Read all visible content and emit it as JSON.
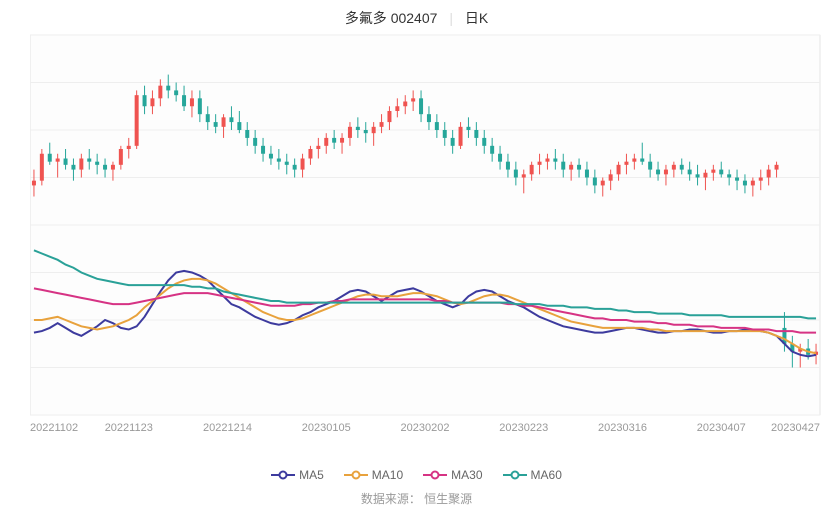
{
  "title": {
    "stock_name": "多氟多",
    "stock_code": "002407",
    "chart_type": "日K",
    "fontsize": 14,
    "color": "#333333",
    "sep_color": "#dddddd"
  },
  "chart": {
    "type": "candlestick_with_ma",
    "background_color": "#ffffff",
    "area_bg": "#fdfdfd",
    "grid_color": "#eeeeee",
    "border_color": "#cccccc",
    "ylim": [
      18,
      42
    ],
    "ytick_step": 3,
    "yticks": [
      18,
      21,
      24,
      27,
      30,
      33,
      36,
      39,
      42
    ],
    "ylabel_color": "#999999",
    "ylabel_fontsize": 11,
    "xticks": [
      "20221102",
      "20221123",
      "20221214",
      "20230105",
      "20230202",
      "20230223",
      "20230316",
      "20230407",
      "20230427"
    ],
    "xlabel_color": "#999999",
    "xlabel_fontsize": 11,
    "candle_up_color": "#ef5350",
    "candle_dn_color": "#26a69a",
    "candle_width": 4,
    "wick_width": 1,
    "candles": [
      {
        "o": 32.5,
        "h": 33.5,
        "l": 31.8,
        "c": 32.8
      },
      {
        "o": 32.8,
        "h": 34.8,
        "l": 32.5,
        "c": 34.5
      },
      {
        "o": 34.5,
        "h": 35.2,
        "l": 33.8,
        "c": 34.0
      },
      {
        "o": 34.0,
        "h": 34.5,
        "l": 33.0,
        "c": 34.2
      },
      {
        "o": 34.2,
        "h": 34.8,
        "l": 33.5,
        "c": 33.8
      },
      {
        "o": 33.8,
        "h": 34.2,
        "l": 32.8,
        "c": 33.5
      },
      {
        "o": 33.5,
        "h": 34.5,
        "l": 33.0,
        "c": 34.2
      },
      {
        "o": 34.2,
        "h": 34.8,
        "l": 33.5,
        "c": 34.0
      },
      {
        "o": 34.0,
        "h": 34.5,
        "l": 33.2,
        "c": 33.8
      },
      {
        "o": 33.8,
        "h": 34.2,
        "l": 33.0,
        "c": 33.5
      },
      {
        "o": 33.5,
        "h": 34.0,
        "l": 32.8,
        "c": 33.8
      },
      {
        "o": 33.8,
        "h": 35.0,
        "l": 33.5,
        "c": 34.8
      },
      {
        "o": 34.8,
        "h": 35.5,
        "l": 34.2,
        "c": 35.0
      },
      {
        "o": 35.0,
        "h": 38.5,
        "l": 34.8,
        "c": 38.2
      },
      {
        "o": 38.2,
        "h": 38.8,
        "l": 37.0,
        "c": 37.5
      },
      {
        "o": 37.5,
        "h": 38.5,
        "l": 37.0,
        "c": 38.0
      },
      {
        "o": 38.0,
        "h": 39.2,
        "l": 37.5,
        "c": 38.8
      },
      {
        "o": 38.8,
        "h": 39.5,
        "l": 38.0,
        "c": 38.5
      },
      {
        "o": 38.5,
        "h": 39.0,
        "l": 37.8,
        "c": 38.2
      },
      {
        "o": 38.2,
        "h": 38.8,
        "l": 37.2,
        "c": 37.5
      },
      {
        "o": 37.5,
        "h": 38.5,
        "l": 36.8,
        "c": 38.0
      },
      {
        "o": 38.0,
        "h": 38.5,
        "l": 36.5,
        "c": 37.0
      },
      {
        "o": 37.0,
        "h": 37.5,
        "l": 36.0,
        "c": 36.5
      },
      {
        "o": 36.5,
        "h": 37.0,
        "l": 35.8,
        "c": 36.2
      },
      {
        "o": 36.2,
        "h": 37.0,
        "l": 35.5,
        "c": 36.8
      },
      {
        "o": 36.8,
        "h": 37.5,
        "l": 36.0,
        "c": 36.5
      },
      {
        "o": 36.5,
        "h": 37.2,
        "l": 35.8,
        "c": 36.0
      },
      {
        "o": 36.0,
        "h": 36.5,
        "l": 35.0,
        "c": 35.5
      },
      {
        "o": 35.5,
        "h": 36.0,
        "l": 34.5,
        "c": 35.0
      },
      {
        "o": 35.0,
        "h": 35.5,
        "l": 34.0,
        "c": 34.5
      },
      {
        "o": 34.5,
        "h": 35.0,
        "l": 33.8,
        "c": 34.2
      },
      {
        "o": 34.2,
        "h": 34.8,
        "l": 33.5,
        "c": 34.0
      },
      {
        "o": 34.0,
        "h": 34.5,
        "l": 33.2,
        "c": 33.8
      },
      {
        "o": 33.8,
        "h": 34.2,
        "l": 33.0,
        "c": 33.5
      },
      {
        "o": 33.5,
        "h": 34.5,
        "l": 33.0,
        "c": 34.2
      },
      {
        "o": 34.2,
        "h": 35.0,
        "l": 33.8,
        "c": 34.8
      },
      {
        "o": 34.8,
        "h": 35.5,
        "l": 34.2,
        "c": 35.0
      },
      {
        "o": 35.0,
        "h": 35.8,
        "l": 34.5,
        "c": 35.5
      },
      {
        "o": 35.5,
        "h": 36.0,
        "l": 34.8,
        "c": 35.2
      },
      {
        "o": 35.2,
        "h": 35.8,
        "l": 34.5,
        "c": 35.5
      },
      {
        "o": 35.5,
        "h": 36.5,
        "l": 35.0,
        "c": 36.2
      },
      {
        "o": 36.2,
        "h": 36.8,
        "l": 35.5,
        "c": 36.0
      },
      {
        "o": 36.0,
        "h": 36.5,
        "l": 35.2,
        "c": 35.8
      },
      {
        "o": 35.8,
        "h": 36.5,
        "l": 35.0,
        "c": 36.2
      },
      {
        "o": 36.2,
        "h": 37.0,
        "l": 35.8,
        "c": 36.5
      },
      {
        "o": 36.5,
        "h": 37.5,
        "l": 36.0,
        "c": 37.2
      },
      {
        "o": 37.2,
        "h": 38.0,
        "l": 36.8,
        "c": 37.5
      },
      {
        "o": 37.5,
        "h": 38.2,
        "l": 37.0,
        "c": 37.8
      },
      {
        "o": 37.8,
        "h": 38.5,
        "l": 37.2,
        "c": 38.0
      },
      {
        "o": 38.0,
        "h": 38.5,
        "l": 36.5,
        "c": 37.0
      },
      {
        "o": 37.0,
        "h": 37.5,
        "l": 36.0,
        "c": 36.5
      },
      {
        "o": 36.5,
        "h": 37.0,
        "l": 35.5,
        "c": 36.0
      },
      {
        "o": 36.0,
        "h": 36.5,
        "l": 35.0,
        "c": 35.5
      },
      {
        "o": 35.5,
        "h": 36.0,
        "l": 34.5,
        "c": 35.0
      },
      {
        "o": 35.0,
        "h": 36.5,
        "l": 34.8,
        "c": 36.2
      },
      {
        "o": 36.2,
        "h": 36.8,
        "l": 35.5,
        "c": 36.0
      },
      {
        "o": 36.0,
        "h": 36.5,
        "l": 35.0,
        "c": 35.5
      },
      {
        "o": 35.5,
        "h": 36.0,
        "l": 34.5,
        "c": 35.0
      },
      {
        "o": 35.0,
        "h": 35.5,
        "l": 34.0,
        "c": 34.5
      },
      {
        "o": 34.5,
        "h": 35.0,
        "l": 33.5,
        "c": 34.0
      },
      {
        "o": 34.0,
        "h": 34.5,
        "l": 33.0,
        "c": 33.5
      },
      {
        "o": 33.5,
        "h": 34.0,
        "l": 32.5,
        "c": 33.0
      },
      {
        "o": 33.0,
        "h": 33.5,
        "l": 32.0,
        "c": 33.2
      },
      {
        "o": 33.2,
        "h": 34.0,
        "l": 32.8,
        "c": 33.8
      },
      {
        "o": 33.8,
        "h": 34.5,
        "l": 33.2,
        "c": 34.0
      },
      {
        "o": 34.0,
        "h": 34.5,
        "l": 33.5,
        "c": 34.2
      },
      {
        "o": 34.2,
        "h": 34.8,
        "l": 33.5,
        "c": 34.0
      },
      {
        "o": 34.0,
        "h": 34.5,
        "l": 33.0,
        "c": 33.5
      },
      {
        "o": 33.5,
        "h": 34.0,
        "l": 32.8,
        "c": 33.8
      },
      {
        "o": 33.8,
        "h": 34.2,
        "l": 33.0,
        "c": 33.5
      },
      {
        "o": 33.5,
        "h": 34.0,
        "l": 32.5,
        "c": 33.0
      },
      {
        "o": 33.0,
        "h": 33.5,
        "l": 32.0,
        "c": 32.5
      },
      {
        "o": 32.5,
        "h": 33.0,
        "l": 31.8,
        "c": 32.8
      },
      {
        "o": 32.8,
        "h": 33.5,
        "l": 32.2,
        "c": 33.2
      },
      {
        "o": 33.2,
        "h": 34.0,
        "l": 32.8,
        "c": 33.8
      },
      {
        "o": 33.8,
        "h": 34.5,
        "l": 33.2,
        "c": 34.0
      },
      {
        "o": 34.0,
        "h": 34.5,
        "l": 33.5,
        "c": 34.2
      },
      {
        "o": 34.2,
        "h": 35.2,
        "l": 33.8,
        "c": 34.0
      },
      {
        "o": 34.0,
        "h": 34.5,
        "l": 33.0,
        "c": 33.5
      },
      {
        "o": 33.5,
        "h": 34.0,
        "l": 32.8,
        "c": 33.2
      },
      {
        "o": 33.2,
        "h": 33.8,
        "l": 32.5,
        "c": 33.5
      },
      {
        "o": 33.5,
        "h": 34.0,
        "l": 33.0,
        "c": 33.8
      },
      {
        "o": 33.8,
        "h": 34.2,
        "l": 33.2,
        "c": 33.5
      },
      {
        "o": 33.5,
        "h": 34.0,
        "l": 32.8,
        "c": 33.2
      },
      {
        "o": 33.2,
        "h": 33.8,
        "l": 32.5,
        "c": 33.0
      },
      {
        "o": 33.0,
        "h": 33.5,
        "l": 32.2,
        "c": 33.3
      },
      {
        "o": 33.3,
        "h": 33.8,
        "l": 32.8,
        "c": 33.5
      },
      {
        "o": 33.5,
        "h": 34.0,
        "l": 33.0,
        "c": 33.2
      },
      {
        "o": 33.2,
        "h": 33.5,
        "l": 32.5,
        "c": 33.0
      },
      {
        "o": 33.0,
        "h": 33.5,
        "l": 32.2,
        "c": 32.8
      },
      {
        "o": 32.8,
        "h": 33.2,
        "l": 32.0,
        "c": 32.5
      },
      {
        "o": 32.5,
        "h": 33.0,
        "l": 31.8,
        "c": 32.8
      },
      {
        "o": 32.8,
        "h": 33.5,
        "l": 32.2,
        "c": 33.0
      },
      {
        "o": 33.0,
        "h": 33.8,
        "l": 32.5,
        "c": 33.5
      },
      {
        "o": 33.5,
        "h": 34.0,
        "l": 33.0,
        "c": 33.8
      },
      {
        "o": 23.5,
        "h": 24.5,
        "l": 22.0,
        "c": 22.5
      },
      {
        "o": 22.5,
        "h": 23.0,
        "l": 21.0,
        "c": 22.0
      },
      {
        "o": 22.0,
        "h": 22.5,
        "l": 21.0,
        "c": 22.2
      },
      {
        "o": 22.2,
        "h": 22.8,
        "l": 21.5,
        "c": 21.8
      },
      {
        "o": 21.8,
        "h": 22.5,
        "l": 21.2,
        "c": 22.0
      }
    ],
    "ma_lines": [
      {
        "name": "MA5",
        "color": "#3d3b9e",
        "width": 2,
        "marker_radius": 3,
        "values": [
          23.2,
          23.3,
          23.5,
          23.8,
          23.5,
          23.2,
          23.0,
          23.3,
          23.6,
          24.0,
          23.8,
          23.5,
          23.4,
          23.6,
          24.2,
          25.0,
          25.8,
          26.5,
          27.0,
          27.1,
          27.0,
          26.8,
          26.5,
          26.0,
          25.5,
          25.0,
          24.8,
          24.5,
          24.2,
          24.0,
          23.8,
          23.7,
          23.8,
          24.0,
          24.3,
          24.5,
          24.8,
          25.0,
          25.2,
          25.5,
          25.8,
          25.9,
          25.8,
          25.5,
          25.2,
          25.5,
          25.8,
          25.9,
          26.0,
          25.8,
          25.5,
          25.2,
          25.0,
          24.8,
          25.0,
          25.5,
          25.8,
          25.9,
          25.8,
          25.5,
          25.2,
          25.0,
          24.8,
          24.5,
          24.2,
          24.0,
          23.8,
          23.6,
          23.5,
          23.4,
          23.3,
          23.2,
          23.2,
          23.3,
          23.4,
          23.5,
          23.5,
          23.4,
          23.3,
          23.2,
          23.2,
          23.3,
          23.3,
          23.4,
          23.4,
          23.3,
          23.2,
          23.2,
          23.3,
          23.3,
          23.4,
          23.4,
          23.3,
          23.2,
          23.0,
          22.5,
          22.0,
          21.8,
          21.7,
          21.8
        ]
      },
      {
        "name": "MA10",
        "color": "#e8a23d",
        "width": 2,
        "marker_radius": 3,
        "values": [
          24.0,
          24.0,
          24.1,
          24.2,
          24.0,
          23.8,
          23.6,
          23.5,
          23.4,
          23.5,
          23.6,
          23.8,
          24.0,
          24.3,
          24.8,
          25.2,
          25.6,
          26.0,
          26.3,
          26.5,
          26.6,
          26.6,
          26.5,
          26.3,
          26.0,
          25.7,
          25.4,
          25.1,
          24.8,
          24.5,
          24.3,
          24.1,
          24.0,
          24.0,
          24.1,
          24.3,
          24.5,
          24.7,
          24.9,
          25.1,
          25.3,
          25.5,
          25.6,
          25.6,
          25.5,
          25.5,
          25.5,
          25.6,
          25.7,
          25.7,
          25.6,
          25.5,
          25.3,
          25.1,
          25.0,
          25.1,
          25.3,
          25.5,
          25.6,
          25.6,
          25.5,
          25.3,
          25.1,
          24.9,
          24.7,
          24.5,
          24.3,
          24.1,
          23.9,
          23.8,
          23.7,
          23.6,
          23.5,
          23.5,
          23.5,
          23.5,
          23.5,
          23.5,
          23.4,
          23.4,
          23.3,
          23.3,
          23.3,
          23.3,
          23.3,
          23.3,
          23.3,
          23.3,
          23.3,
          23.3,
          23.3,
          23.3,
          23.3,
          23.2,
          23.0,
          22.8,
          22.5,
          22.2,
          22.0,
          21.9
        ]
      },
      {
        "name": "MA30",
        "color": "#d63384",
        "width": 2,
        "marker_radius": 3,
        "values": [
          26.0,
          25.9,
          25.8,
          25.7,
          25.6,
          25.5,
          25.4,
          25.3,
          25.2,
          25.1,
          25.0,
          25.0,
          25.0,
          25.1,
          25.2,
          25.3,
          25.4,
          25.5,
          25.6,
          25.7,
          25.7,
          25.7,
          25.7,
          25.6,
          25.5,
          25.4,
          25.3,
          25.2,
          25.1,
          25.0,
          24.9,
          24.9,
          24.9,
          24.9,
          25.0,
          25.0,
          25.1,
          25.1,
          25.2,
          25.2,
          25.3,
          25.3,
          25.3,
          25.3,
          25.3,
          25.3,
          25.3,
          25.3,
          25.3,
          25.3,
          25.3,
          25.2,
          25.2,
          25.1,
          25.1,
          25.1,
          25.1,
          25.1,
          25.1,
          25.1,
          25.0,
          25.0,
          24.9,
          24.9,
          24.8,
          24.7,
          24.6,
          24.5,
          24.4,
          24.3,
          24.2,
          24.1,
          24.1,
          24.0,
          24.0,
          24.0,
          23.9,
          23.9,
          23.9,
          23.8,
          23.8,
          23.7,
          23.7,
          23.7,
          23.6,
          23.6,
          23.6,
          23.5,
          23.5,
          23.5,
          23.5,
          23.4,
          23.4,
          23.4,
          23.3,
          23.3,
          23.3,
          23.2,
          23.2,
          23.2
        ]
      },
      {
        "name": "MA60",
        "color": "#2aa198",
        "width": 2,
        "marker_radius": 3,
        "values": [
          28.4,
          28.2,
          28.0,
          27.8,
          27.5,
          27.3,
          27.0,
          26.8,
          26.6,
          26.5,
          26.4,
          26.3,
          26.2,
          26.2,
          26.2,
          26.2,
          26.2,
          26.2,
          26.2,
          26.2,
          26.1,
          26.1,
          26.0,
          26.0,
          25.8,
          25.7,
          25.6,
          25.5,
          25.4,
          25.3,
          25.2,
          25.2,
          25.1,
          25.1,
          25.1,
          25.1,
          25.1,
          25.1,
          25.1,
          25.1,
          25.1,
          25.1,
          25.1,
          25.1,
          25.1,
          25.1,
          25.1,
          25.1,
          25.1,
          25.1,
          25.1,
          25.1,
          25.1,
          25.1,
          25.1,
          25.1,
          25.1,
          25.1,
          25.1,
          25.1,
          25.1,
          25.0,
          25.0,
          25.0,
          25.0,
          24.9,
          24.9,
          24.9,
          24.8,
          24.8,
          24.8,
          24.7,
          24.7,
          24.7,
          24.6,
          24.6,
          24.5,
          24.5,
          24.5,
          24.4,
          24.4,
          24.4,
          24.4,
          24.3,
          24.3,
          24.3,
          24.3,
          24.3,
          24.2,
          24.2,
          24.2,
          24.2,
          24.2,
          24.2,
          24.2,
          24.2,
          24.2,
          24.2,
          24.1,
          24.1
        ]
      }
    ]
  },
  "legend": {
    "fontsize": 12,
    "text_color": "#666666",
    "items": [
      {
        "label": "MA5",
        "color": "#3d3b9e"
      },
      {
        "label": "MA10",
        "color": "#e8a23d"
      },
      {
        "label": "MA30",
        "color": "#d63384"
      },
      {
        "label": "MA60",
        "color": "#2aa198"
      }
    ]
  },
  "source": {
    "prefix": "数据来源：",
    "name": "恒生聚源",
    "fontsize": 12,
    "color": "#999999"
  }
}
